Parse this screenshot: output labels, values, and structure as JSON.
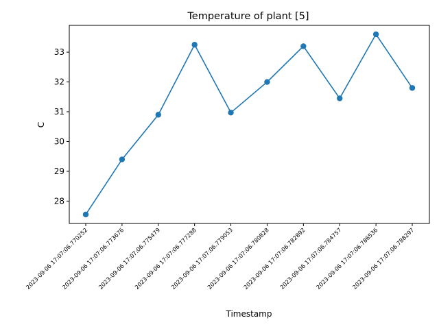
{
  "chart_data": {
    "type": "line",
    "title": "Temperature of plant [5]",
    "xlabel": "Timestamp",
    "ylabel": "C",
    "categories": [
      "2023-09-06 17:07:06.770252",
      "2023-09-06 17:07:06.773676",
      "2023-09-06 17:07:06.775479",
      "2023-09-06 17:07:06.777288",
      "2023-09-06 17:07:06.779053",
      "2023-09-06 17:07:06.780828",
      "2023-09-06 17:07:06.782892",
      "2023-09-06 17:07:06.784757",
      "2023-09-06 17:07:06.786536",
      "2023-09-06 17:07:06.788297"
    ],
    "series": [
      {
        "values": [
          27.55,
          29.4,
          30.9,
          33.25,
          30.97,
          32.0,
          33.2,
          31.45,
          33.6,
          31.8
        ],
        "color": "#1f77b4",
        "marker": "circle"
      }
    ],
    "yticks": [
      28,
      29,
      30,
      31,
      32,
      33
    ],
    "ylim": [
      27.25,
      33.9
    ],
    "grid": false,
    "legend": "none"
  }
}
